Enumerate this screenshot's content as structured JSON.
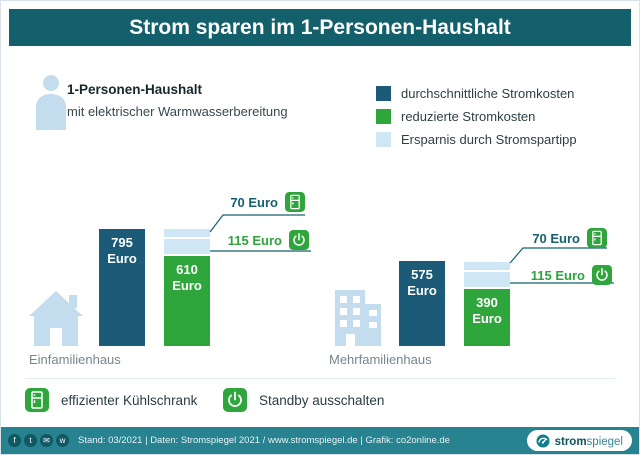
{
  "header": {
    "title": "Strom sparen im 1-Personen-Haushalt"
  },
  "intro": {
    "title": "1-Personen-Haushalt",
    "subtitle": "mit elektrischer Warmwasserbereitung",
    "icon": "person-icon"
  },
  "chart_data": {
    "type": "bar",
    "title": "Strom sparen im 1-Personen-Haushalt",
    "unit": "Euro",
    "ylim": [
      0,
      800
    ],
    "legend_position": "top-right",
    "legend": [
      {
        "label": "durchschnittliche Stromkosten",
        "color": "#1c5b78"
      },
      {
        "label": "reduzierte Stromkosten",
        "color": "#2fa63c"
      },
      {
        "label": "Ersparnis durch Stromspartipp",
        "color": "#cfe7f5"
      }
    ],
    "categories": [
      "Einfamilienhaus",
      "Mehrfamilienhaus"
    ],
    "groups": [
      {
        "category": "Einfamilienhaus",
        "icon": "house-icon",
        "average_cost": {
          "value": 795,
          "label": "795 Euro"
        },
        "reduced_cost": {
          "value": 610,
          "label": "610 Euro"
        },
        "savings": [
          {
            "value": 70,
            "label": "70 Euro",
            "tip": "effizienter Kühlschrank",
            "icon": "fridge-icon"
          },
          {
            "value": 115,
            "label": "115 Euro",
            "tip": "Standby ausschalten",
            "icon": "power-icon"
          }
        ]
      },
      {
        "category": "Mehrfamilienhaus",
        "icon": "apartment-building-icon",
        "average_cost": {
          "value": 575,
          "label": "575 Euro"
        },
        "reduced_cost": {
          "value": 390,
          "label": "390 Euro"
        },
        "savings": [
          {
            "value": 70,
            "label": "70 Euro",
            "tip": "effizienter Kühlschrank",
            "icon": "fridge-icon"
          },
          {
            "value": 115,
            "label": "115 Euro",
            "tip": "Standby ausschalten",
            "icon": "power-icon"
          }
        ]
      }
    ]
  },
  "tips_legend": {
    "items": [
      {
        "icon": "fridge-icon",
        "label": "effizienter Kühlschrank"
      },
      {
        "icon": "power-icon",
        "label": "Standby ausschalten"
      }
    ]
  },
  "footer": {
    "meta": "Stand: 03/2021  |  Daten: Stromspiegel 2021 / www.stromspiegel.de  |  Grafik: co2online.de",
    "social": [
      {
        "name": "facebook-icon",
        "glyph": "f"
      },
      {
        "name": "twitter-icon",
        "glyph": "t"
      },
      {
        "name": "email-icon",
        "glyph": "✉"
      },
      {
        "name": "whatsapp-icon",
        "glyph": "w"
      }
    ],
    "logo": {
      "bold": "strom",
      "light": "spiegel"
    }
  }
}
